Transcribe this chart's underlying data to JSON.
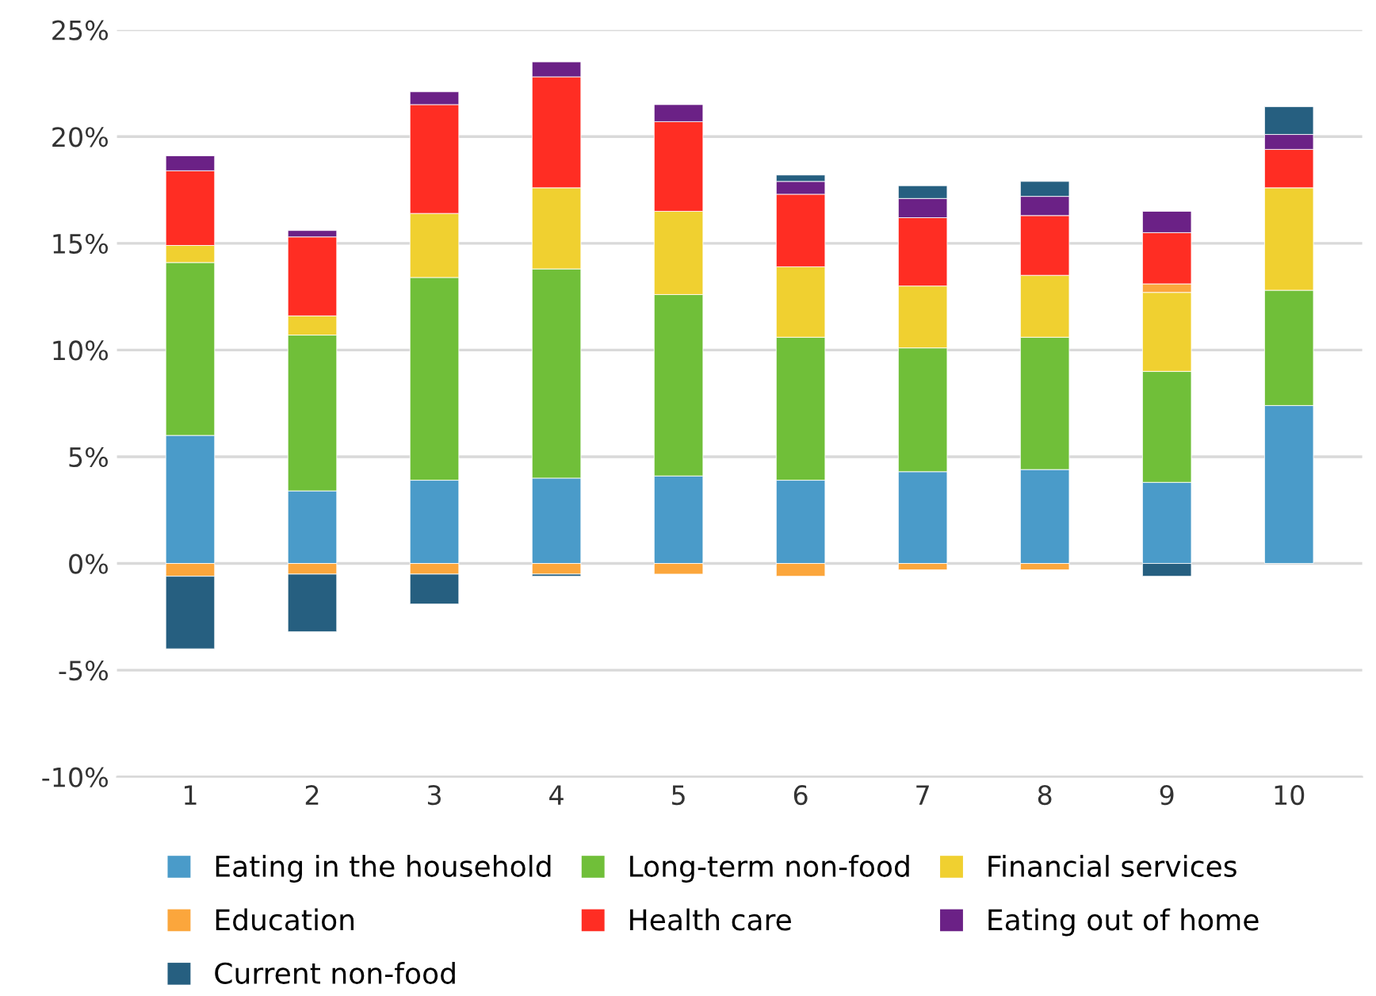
{
  "chart_data": {
    "type": "bar",
    "stacked": true,
    "categories": [
      "1",
      "2",
      "3",
      "4",
      "5",
      "6",
      "7",
      "8",
      "9",
      "10"
    ],
    "series": [
      {
        "name": "Eating in the household",
        "color": "#4a9bc9",
        "values": [
          6.0,
          3.4,
          3.9,
          4.0,
          4.1,
          3.9,
          4.3,
          4.4,
          3.8,
          7.4
        ]
      },
      {
        "name": "Long-term non-food",
        "color": "#70bf39",
        "values": [
          8.1,
          7.3,
          9.5,
          9.8,
          8.5,
          6.7,
          5.8,
          6.2,
          5.2,
          5.4
        ]
      },
      {
        "name": "Financial services",
        "color": "#f0d030",
        "values": [
          0.8,
          0.9,
          3.0,
          3.8,
          3.9,
          3.3,
          2.9,
          2.9,
          3.7,
          4.8
        ]
      },
      {
        "name": "Education",
        "color": "#fba63c",
        "values": [
          -0.6,
          -0.5,
          -0.5,
          -0.5,
          -0.5,
          -0.6,
          -0.3,
          -0.3,
          0.4,
          null
        ]
      },
      {
        "name": "Health care",
        "color": "#ff2d23",
        "values": [
          3.5,
          3.7,
          5.1,
          5.2,
          4.2,
          3.4,
          3.2,
          2.8,
          2.4,
          1.8
        ]
      },
      {
        "name": "Eating out of home",
        "color": "#6b2186",
        "values": [
          0.7,
          0.3,
          0.6,
          0.7,
          0.8,
          0.6,
          0.9,
          0.9,
          1.0,
          0.7
        ]
      },
      {
        "name": "Current non-food",
        "color": "#265f80",
        "values": [
          -3.4,
          -2.7,
          -1.4,
          -0.1,
          null,
          0.3,
          0.6,
          0.7,
          -0.6,
          1.3
        ]
      }
    ],
    "ylim": [
      -10,
      25
    ],
    "yticks": [
      {
        "value": -10,
        "label": "-10%"
      },
      {
        "value": -5,
        "label": "-5%"
      },
      {
        "value": 0,
        "label": "0%"
      },
      {
        "value": 5,
        "label": "5%"
      },
      {
        "value": 10,
        "label": "10%"
      },
      {
        "value": 15,
        "label": "15%"
      },
      {
        "value": 20,
        "label": "20%"
      },
      {
        "value": 25,
        "label": "25%"
      }
    ],
    "grid": "y",
    "legend": "bottom"
  }
}
